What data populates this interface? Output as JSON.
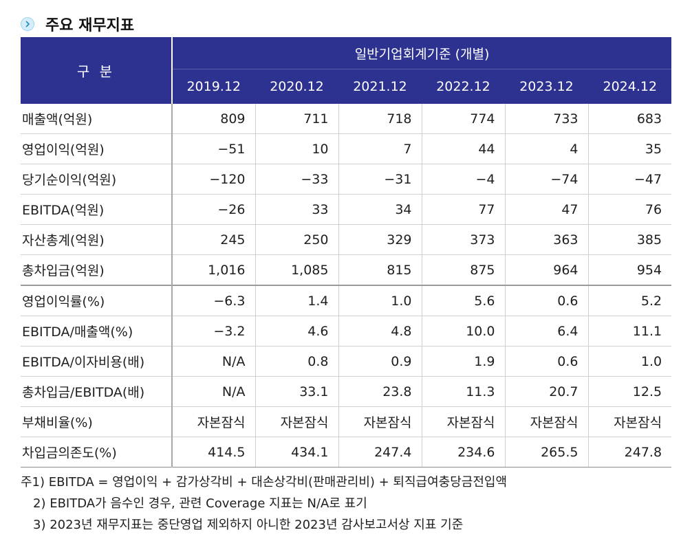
{
  "section": {
    "title": "주요 재무지표",
    "icon": "chevron-right-icon"
  },
  "table": {
    "corner_label": "구 분",
    "group_header": "일반기업회계기준 (개별)",
    "years": [
      "2019.12",
      "2020.12",
      "2021.12",
      "2022.12",
      "2023.12",
      "2024.12"
    ],
    "rows": [
      {
        "label": "매출액(억원)",
        "values": [
          "809",
          "711",
          "718",
          "774",
          "733",
          "683"
        ]
      },
      {
        "label": "영업이익(억원)",
        "values": [
          "−51",
          "10",
          "7",
          "44",
          "4",
          "35"
        ]
      },
      {
        "label": "당기순이익(억원)",
        "values": [
          "−120",
          "−33",
          "−31",
          "−4",
          "−74",
          "−47"
        ]
      },
      {
        "label": "EBITDA(억원)",
        "values": [
          "−26",
          "33",
          "34",
          "77",
          "47",
          "76"
        ]
      },
      {
        "label": "자산총계(억원)",
        "values": [
          "245",
          "250",
          "329",
          "373",
          "363",
          "385"
        ]
      },
      {
        "label": "총차입금(억원)",
        "values": [
          "1,016",
          "1,085",
          "815",
          "875",
          "964",
          "954"
        ]
      },
      {
        "label": "영업이익률(%)",
        "values": [
          "−6.3",
          "1.4",
          "1.0",
          "5.6",
          "0.6",
          "5.2"
        ]
      },
      {
        "label": "EBITDA/매출액(%)",
        "values": [
          "−3.2",
          "4.6",
          "4.8",
          "10.0",
          "6.4",
          "11.1"
        ]
      },
      {
        "label": "EBITDA/이자비용(배)",
        "values": [
          "N/A",
          "0.8",
          "0.9",
          "1.9",
          "0.6",
          "1.0"
        ]
      },
      {
        "label": "총차입금/EBITDA(배)",
        "values": [
          "N/A",
          "33.1",
          "23.8",
          "11.3",
          "20.7",
          "12.5"
        ]
      },
      {
        "label": "부채비율(%)",
        "values": [
          "자본잠식",
          "자본잠식",
          "자본잠식",
          "자본잠식",
          "자본잠식",
          "자본잠식"
        ]
      },
      {
        "label": "차입금의존도(%)",
        "values": [
          "414.5",
          "434.1",
          "247.4",
          "234.6",
          "265.5",
          "247.8"
        ]
      }
    ]
  },
  "notes": [
    "주1) EBITDA = 영업이익 + 감가상각비 + 대손상각비(판매관리비) + 퇴직급여충당금전입액",
    "2) EBITDA가 음수인 경우, 관련 Coverage 지표는 N/A로 표기",
    "3) 2023년 재무지표는 중단영업 제외하지 아니한 2023년 감사보고서상 지표 기준"
  ],
  "colors": {
    "header_bg": "#2d3190",
    "icon_bg": "#d6eefa",
    "icon_fg": "#2a8fc7"
  }
}
